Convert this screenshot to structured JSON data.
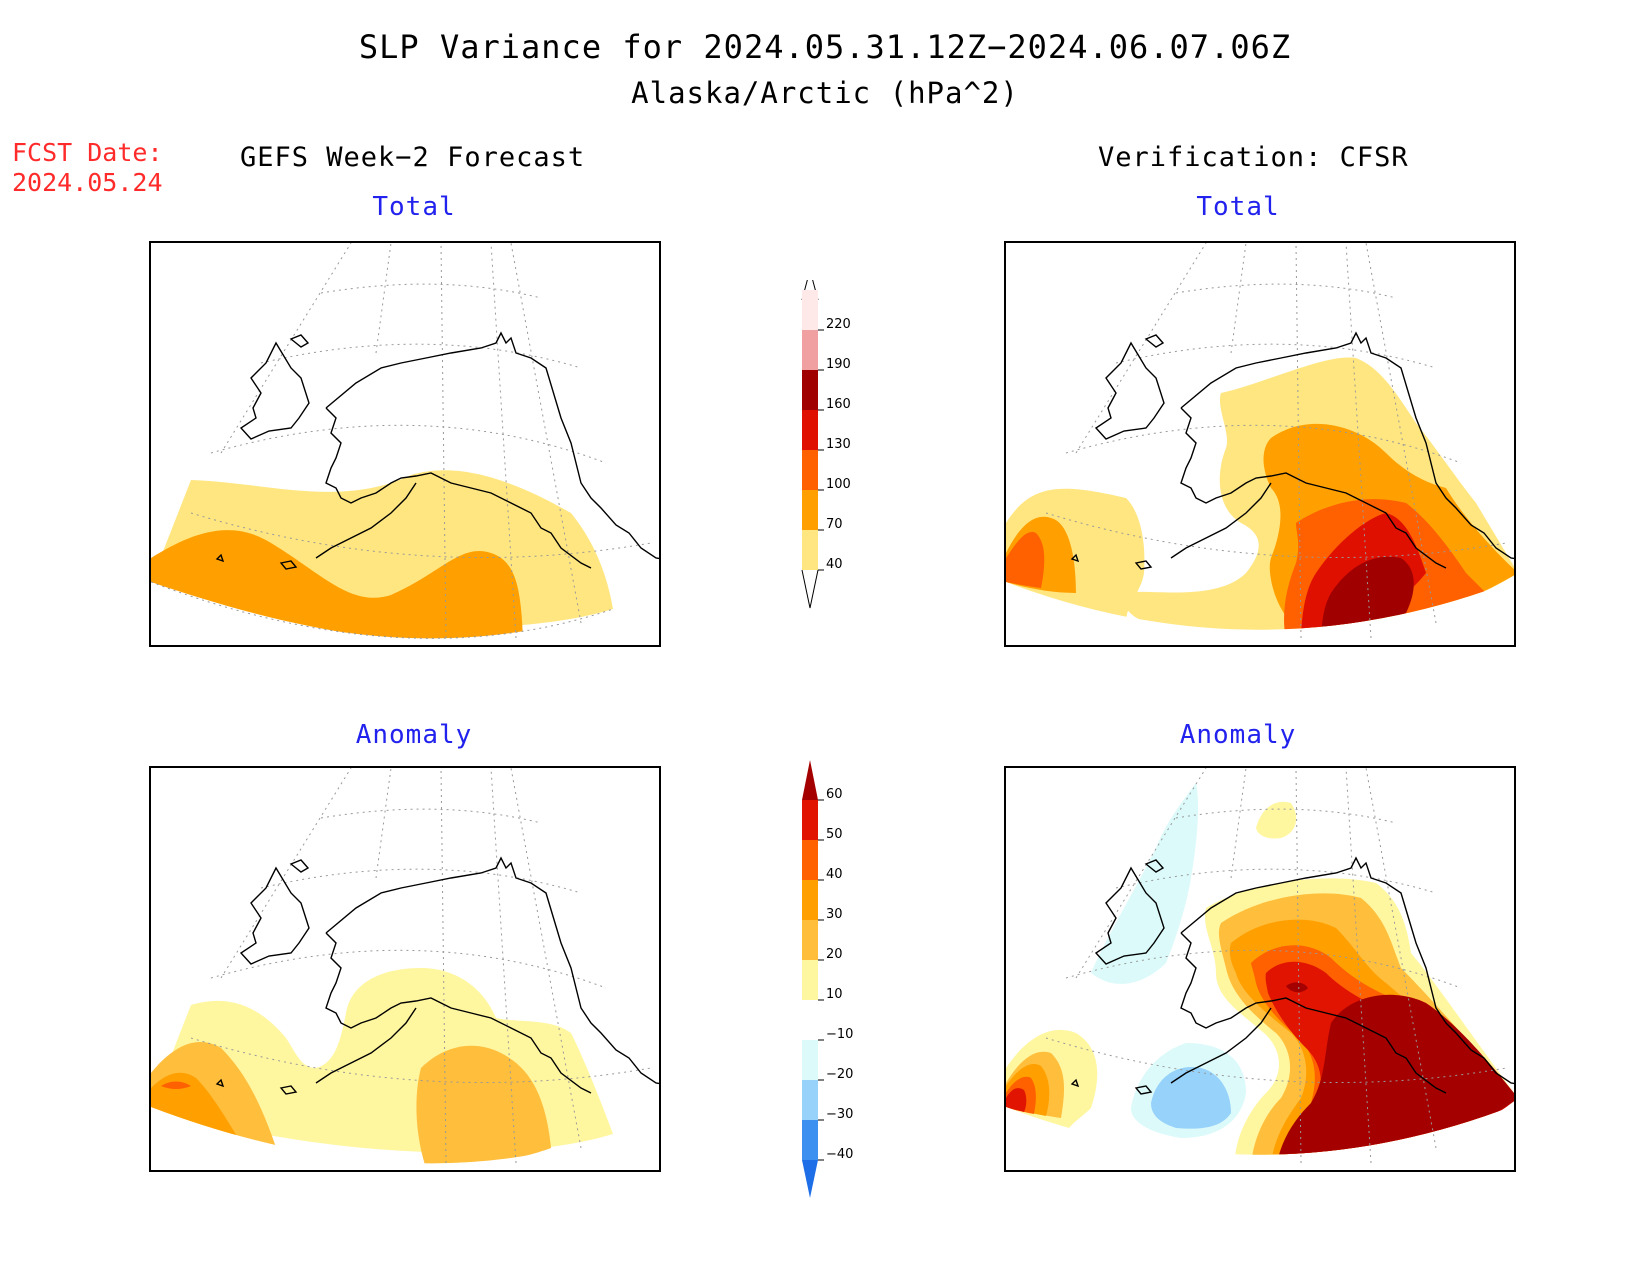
{
  "header": {
    "title": "SLP Variance for 2024.05.31.12Z−2024.06.07.06Z",
    "subtitle": "Alaska/Arctic (hPa^2)",
    "fcst_date_label": "FCST Date:",
    "fcst_date_value": "2024.05.24"
  },
  "columns": {
    "left_heading": "GEFS Week−2 Forecast",
    "right_heading": "Verification: CFSR"
  },
  "panels": {
    "forecast_total": {
      "title": "Total"
    },
    "forecast_anomaly": {
      "title": "Anomaly"
    },
    "verification_total": {
      "title": "Total"
    },
    "verification_anomaly": {
      "title": "Anomaly"
    }
  },
  "colorbars": {
    "total": {
      "levels": [
        "40",
        "70",
        "100",
        "130",
        "160",
        "190",
        "220"
      ],
      "colors": [
        "#ffe680",
        "#ffa000",
        "#ff6000",
        "#e01000",
        "#a00000",
        "#f0a0a0",
        "#ffe8e8"
      ]
    },
    "anomaly": {
      "levels": [
        "−40",
        "−30",
        "−20",
        "−10",
        "10",
        "20",
        "30",
        "40",
        "50",
        "60"
      ],
      "colors": [
        "#1e6ee8",
        "#3c90f0",
        "#96d2fa",
        "#dcfafa",
        "#ffffff",
        "#fff6a0",
        "#ffbe3c",
        "#ffa000",
        "#ff6000",
        "#e01400",
        "#a50000"
      ]
    }
  }
}
